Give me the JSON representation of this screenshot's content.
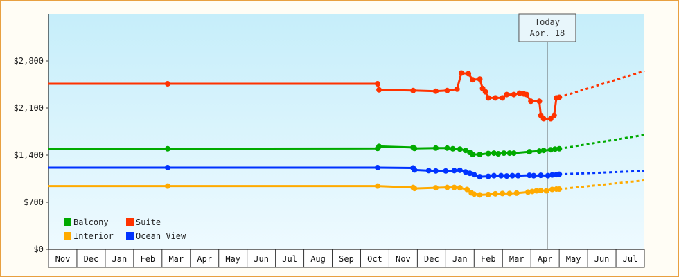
{
  "chart_data": {
    "type": "line",
    "title": "",
    "xlabel": "",
    "ylabel": "",
    "ylim": [
      0,
      3500
    ],
    "y_ticks": [
      0,
      700,
      1400,
      2100,
      2800
    ],
    "y_tick_labels": [
      "$0",
      "$700",
      "$1,400",
      "$2,100",
      "$2,800"
    ],
    "months": [
      "Nov",
      "Dec",
      "Jan",
      "Feb",
      "Mar",
      "Apr",
      "May",
      "Jun",
      "Jul",
      "Aug",
      "Sep",
      "Oct",
      "Nov",
      "Dec",
      "Jan",
      "Feb",
      "Mar",
      "Apr",
      "May",
      "Jun",
      "Jul"
    ],
    "x_unit": "month index from start of first Nov",
    "today": {
      "label_line1": "Today",
      "label_line2": "Apr. 18",
      "x": 17.58
    },
    "grid": false,
    "legend_position": "bottom-left",
    "colors": {
      "background_top": "#c6eefa",
      "background_bottom": "#eefaff"
    },
    "series": [
      {
        "name": "Suite",
        "color": "#ff3300",
        "points": [
          [
            0,
            2460
          ],
          [
            4.2,
            2460
          ],
          [
            11.6,
            2460
          ],
          [
            11.65,
            2370
          ],
          [
            12.85,
            2360
          ],
          [
            13.65,
            2350
          ],
          [
            14.05,
            2360
          ],
          [
            14.4,
            2380
          ],
          [
            14.55,
            2620
          ],
          [
            14.8,
            2610
          ],
          [
            14.95,
            2520
          ],
          [
            15.2,
            2530
          ],
          [
            15.3,
            2390
          ],
          [
            15.4,
            2340
          ],
          [
            15.5,
            2250
          ],
          [
            15.75,
            2250
          ],
          [
            16.0,
            2250
          ],
          [
            16.15,
            2300
          ],
          [
            16.4,
            2300
          ],
          [
            16.6,
            2320
          ],
          [
            16.75,
            2310
          ],
          [
            16.85,
            2300
          ],
          [
            17.0,
            2200
          ],
          [
            17.3,
            2200
          ],
          [
            17.35,
            1990
          ],
          [
            17.45,
            1940
          ],
          [
            17.7,
            1940
          ],
          [
            17.82,
            1990
          ],
          [
            17.9,
            2250
          ],
          [
            18.0,
            2260
          ]
        ],
        "projection": [
          [
            18.0,
            2260
          ],
          [
            21.0,
            2650
          ]
        ]
      },
      {
        "name": "Balcony",
        "color": "#00aa00",
        "points": [
          [
            0,
            1490
          ],
          [
            4.2,
            1495
          ],
          [
            11.6,
            1500
          ],
          [
            11.65,
            1530
          ],
          [
            12.85,
            1515
          ],
          [
            12.9,
            1500
          ],
          [
            13.65,
            1505
          ],
          [
            14.05,
            1505
          ],
          [
            14.25,
            1495
          ],
          [
            14.5,
            1490
          ],
          [
            14.7,
            1470
          ],
          [
            14.85,
            1440
          ],
          [
            14.95,
            1410
          ],
          [
            15.2,
            1410
          ],
          [
            15.5,
            1425
          ],
          [
            15.7,
            1430
          ],
          [
            15.85,
            1420
          ],
          [
            16.05,
            1430
          ],
          [
            16.25,
            1430
          ],
          [
            16.4,
            1430
          ],
          [
            16.95,
            1450
          ],
          [
            17.3,
            1460
          ],
          [
            17.45,
            1470
          ],
          [
            17.7,
            1480
          ],
          [
            17.85,
            1490
          ],
          [
            18.0,
            1495
          ]
        ],
        "projection": [
          [
            18.0,
            1495
          ],
          [
            21.0,
            1700
          ]
        ]
      },
      {
        "name": "Ocean View",
        "color": "#0033ff",
        "points": [
          [
            0,
            1215
          ],
          [
            4.2,
            1215
          ],
          [
            11.6,
            1215
          ],
          [
            12.85,
            1210
          ],
          [
            12.9,
            1180
          ],
          [
            13.4,
            1170
          ],
          [
            13.65,
            1165
          ],
          [
            14.0,
            1165
          ],
          [
            14.3,
            1170
          ],
          [
            14.5,
            1175
          ],
          [
            14.7,
            1150
          ],
          [
            14.85,
            1130
          ],
          [
            15.0,
            1110
          ],
          [
            15.2,
            1080
          ],
          [
            15.5,
            1085
          ],
          [
            15.7,
            1095
          ],
          [
            15.95,
            1095
          ],
          [
            16.15,
            1090
          ],
          [
            16.35,
            1095
          ],
          [
            16.55,
            1095
          ],
          [
            16.95,
            1100
          ],
          [
            17.1,
            1095
          ],
          [
            17.35,
            1100
          ],
          [
            17.6,
            1095
          ],
          [
            17.75,
            1105
          ],
          [
            17.9,
            1110
          ],
          [
            18.0,
            1115
          ]
        ],
        "projection": [
          [
            18.0,
            1115
          ],
          [
            21.0,
            1165
          ]
        ]
      },
      {
        "name": "Interior",
        "color": "#ffaa00",
        "points": [
          [
            0,
            940
          ],
          [
            4.2,
            940
          ],
          [
            11.6,
            940
          ],
          [
            12.85,
            920
          ],
          [
            12.9,
            905
          ],
          [
            13.65,
            915
          ],
          [
            14.05,
            920
          ],
          [
            14.3,
            920
          ],
          [
            14.5,
            915
          ],
          [
            14.75,
            890
          ],
          [
            14.9,
            840
          ],
          [
            15.0,
            820
          ],
          [
            15.2,
            810
          ],
          [
            15.5,
            815
          ],
          [
            15.75,
            825
          ],
          [
            16.0,
            830
          ],
          [
            16.25,
            830
          ],
          [
            16.5,
            835
          ],
          [
            16.9,
            850
          ],
          [
            17.05,
            860
          ],
          [
            17.2,
            870
          ],
          [
            17.35,
            875
          ],
          [
            17.55,
            870
          ],
          [
            17.75,
            890
          ],
          [
            17.9,
            895
          ],
          [
            18.0,
            895
          ]
        ],
        "projection": [
          [
            18.0,
            895
          ],
          [
            21.0,
            1025
          ]
        ]
      }
    ],
    "legend": [
      {
        "name": "Balcony",
        "color": "#00aa00"
      },
      {
        "name": "Suite",
        "color": "#ff3300"
      },
      {
        "name": "Interior",
        "color": "#ffaa00"
      },
      {
        "name": "Ocean View",
        "color": "#0033ff"
      }
    ]
  }
}
